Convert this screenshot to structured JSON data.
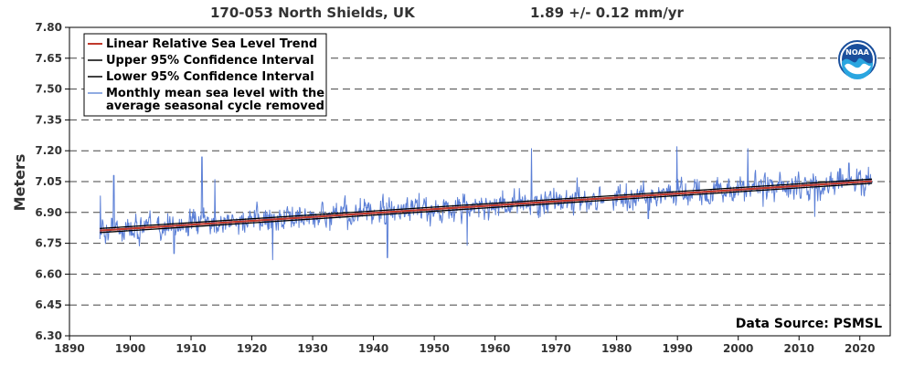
{
  "chart_data": {
    "type": "line",
    "title_station": "170-053 North Shields, UK",
    "title_rate": "1.89 +/-  0.12 mm/yr",
    "ylabel": "Meters",
    "xlim": [
      1890,
      2025
    ],
    "ylim": [
      6.3,
      7.8
    ],
    "x_ticks": [
      "1890",
      "1900",
      "1910",
      "1920",
      "1930",
      "1940",
      "1950",
      "1960",
      "1970",
      "1980",
      "1990",
      "2000",
      "2010",
      "2020"
    ],
    "y_ticks": [
      "6.30",
      "6.45",
      "6.60",
      "6.75",
      "6.90",
      "7.05",
      "7.20",
      "7.35",
      "7.50",
      "7.65",
      "7.80"
    ],
    "grid": "horizontal dashed",
    "legend_position": "top-left",
    "legend": [
      {
        "label": "Linear Relative Sea Level Trend",
        "color": "#c0392b"
      },
      {
        "label": "Upper 95% Confidence Interval",
        "color": "#000000"
      },
      {
        "label": "Lower 95% Confidence Interval",
        "color": "#000000"
      },
      {
        "label_line1": "Monthly mean sea level with the",
        "label_line2": "average seasonal cycle removed",
        "color": "#6a8fd8"
      }
    ],
    "source": "Data Source: PSMSL",
    "logo_text": "NOAA",
    "series": [
      {
        "name": "Linear Relative Sea Level Trend",
        "x": [
          1895,
          2022
        ],
        "values": [
          6.812,
          7.052
        ],
        "color": "#c0392b"
      },
      {
        "name": "Upper 95% Confidence Interval",
        "x": [
          1895,
          2022
        ],
        "values": [
          6.822,
          7.062
        ],
        "color": "#000000"
      },
      {
        "name": "Lower 95% Confidence Interval",
        "x": [
          1895,
          2022
        ],
        "values": [
          6.802,
          7.042
        ],
        "color": "#000000"
      },
      {
        "name": "Monthly mean sea level",
        "color": "#5b7fd6",
        "x_start": 1895,
        "x_end": 2022,
        "trend_start": 6.812,
        "trend_end": 7.052,
        "noise_sd": 0.045,
        "gaps": [
          [
            1903.5,
            1904.3
          ],
          [
            1940.2,
            1940.6
          ],
          [
            1978.0,
            1979.2
          ]
        ],
        "spikes": [
          {
            "x": 1895.1,
            "value": 6.98
          },
          {
            "x": 1897.3,
            "value": 7.08
          },
          {
            "x": 1911.8,
            "value": 7.17
          },
          {
            "x": 1913.9,
            "value": 7.06
          },
          {
            "x": 1923.4,
            "value": 6.67
          },
          {
            "x": 1942.3,
            "value": 6.68
          },
          {
            "x": 1966.0,
            "value": 7.21
          },
          {
            "x": 1989.9,
            "value": 7.22
          },
          {
            "x": 2001.6,
            "value": 7.21
          },
          {
            "x": 1985.2,
            "value": 6.87
          },
          {
            "x": 1955.4,
            "value": 6.74
          },
          {
            "x": 2021.4,
            "value": 7.12
          },
          {
            "x": 1907.2,
            "value": 6.7
          },
          {
            "x": 2012.6,
            "value": 6.88
          },
          {
            "x": 2018.2,
            "value": 7.14
          }
        ]
      }
    ]
  }
}
